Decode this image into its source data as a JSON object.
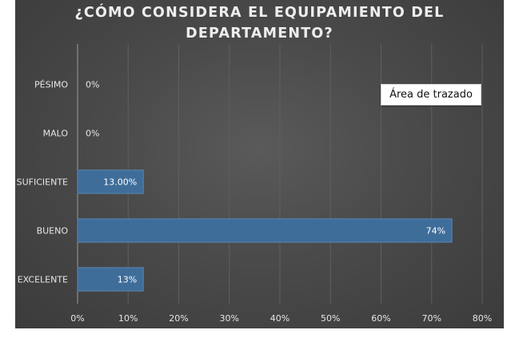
{
  "tooltip": "Área de trazado",
  "chart_data": {
    "type": "bar",
    "orientation": "horizontal",
    "title_lines": [
      "¿CÓMO CONSIDERA EL EQUIPAMIENTO DEL",
      "DEPARTAMENTO?"
    ],
    "categories": [
      "PÉSIMO",
      "MALO",
      "SUFICIENTE",
      "BUENO",
      "EXCELENTE"
    ],
    "values": [
      0,
      0,
      13,
      74,
      13
    ],
    "data_labels": [
      "0%",
      "0%",
      "13.00%",
      "74%",
      "13%"
    ],
    "xlim": [
      0,
      80
    ],
    "xticks": [
      "0%",
      "10%",
      "20%",
      "30%",
      "40%",
      "50%",
      "60%",
      "70%",
      "80%"
    ],
    "grid": "vertical",
    "colors": {
      "background": "#4a4a4a",
      "bar_fill": "#3f6d9a",
      "bar_stroke": "#5a86b3",
      "grid": "#5f5f5f",
      "text": "#e6e6e6"
    }
  }
}
